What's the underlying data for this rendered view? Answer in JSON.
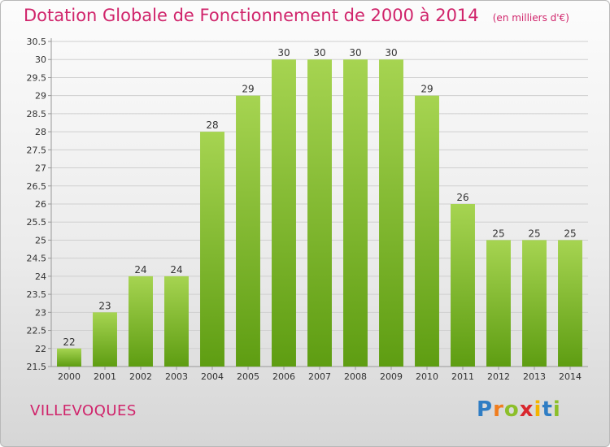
{
  "title": "Dotation Globale de Fonctionnement de 2000 à 2014",
  "unit_label": "(en milliers d'€)",
  "commune": "VILLEVOQUES",
  "logo": {
    "text": "Proxiti",
    "letters": [
      "P",
      "r",
      "o",
      "x",
      "i",
      "t",
      "i"
    ],
    "letter_colors": [
      "#2f7dc4",
      "#f07d1e",
      "#8cbf2a",
      "#d9272e",
      "#f4b400",
      "#2f7dc4",
      "#8cbf2a"
    ]
  },
  "colors": {
    "bar_top": "#a6d451",
    "bar_bottom": "#5e9d12",
    "title": "#d0246b",
    "grid": "#cfcfcf"
  },
  "chart_data": {
    "type": "bar",
    "title": "Dotation Globale de Fonctionnement de 2000 à 2014",
    "ylabel": "",
    "xlabel": "",
    "ylim": [
      21.5,
      30.5
    ],
    "yticks": [
      "21.5",
      "22",
      "22.5",
      "23",
      "23.5",
      "24",
      "24.5",
      "25",
      "25.5",
      "26",
      "26.5",
      "27",
      "27.5",
      "28",
      "28.5",
      "29",
      "29.5",
      "30",
      "30.5"
    ],
    "grid": true,
    "categories": [
      "2000",
      "2001",
      "2002",
      "2003",
      "2004",
      "2005",
      "2006",
      "2007",
      "2008",
      "2009",
      "2010",
      "2011",
      "2012",
      "2013",
      "2014"
    ],
    "values": [
      22,
      23,
      24,
      24,
      28,
      29,
      30,
      30,
      30,
      30,
      29,
      26,
      25,
      25,
      25
    ],
    "value_labels": [
      "22",
      "23",
      "24",
      "24",
      "28",
      "29",
      "30",
      "30",
      "30",
      "30",
      "29",
      "26",
      "25",
      "25",
      "25"
    ]
  }
}
